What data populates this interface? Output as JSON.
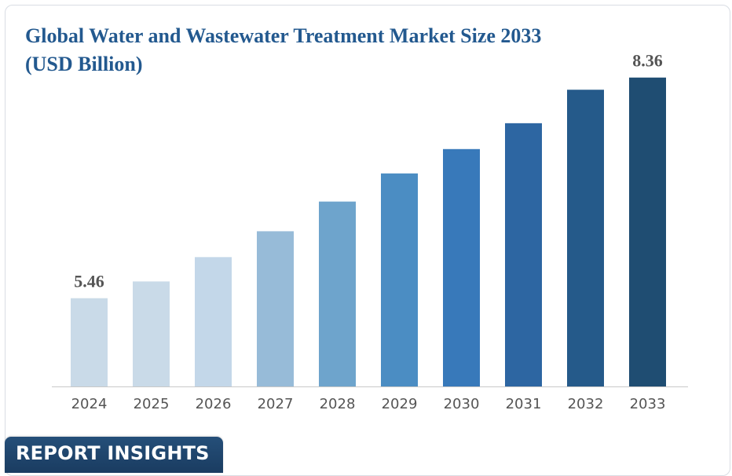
{
  "chart_data": {
    "type": "bar",
    "title": "Global Water and Wastewater Treatment Market Size 2033 (USD Billion)",
    "categories": [
      "2024",
      "2025",
      "2026",
      "2027",
      "2028",
      "2029",
      "2030",
      "2031",
      "2032",
      "2033"
    ],
    "values": [
      5.46,
      5.68,
      6.0,
      6.34,
      6.73,
      7.1,
      7.42,
      7.76,
      8.2,
      8.36
    ],
    "data_labels": [
      {
        "index": 0,
        "text": "5.46"
      },
      {
        "index": 9,
        "text": "8.36"
      }
    ],
    "xlabel": "",
    "ylabel": "",
    "ylim": [
      4.3,
      8.76
    ],
    "grid": false,
    "legend": "none",
    "colors": [
      "#c9dae8",
      "#c9dae8",
      "#c3d7e9",
      "#97bbd8",
      "#6ea4cc",
      "#4b8dc3",
      "#3879ba",
      "#2d66a2",
      "#255a8a",
      "#1f4d72"
    ]
  },
  "badge": {
    "label": "REPORT INSIGHTS",
    "color": "#1e4670"
  }
}
